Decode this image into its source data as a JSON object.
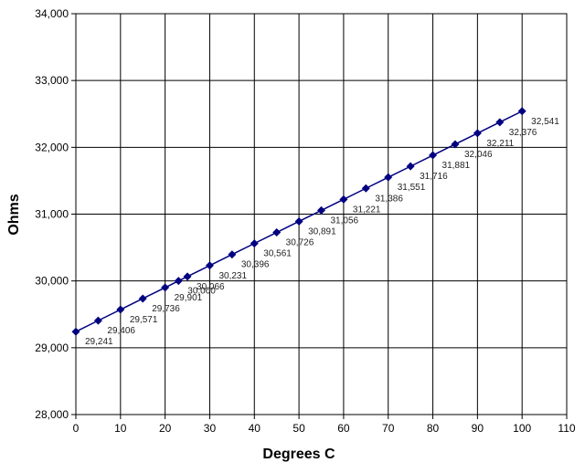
{
  "chart_data": {
    "type": "line",
    "title": "",
    "xlabel": "Degrees C",
    "ylabel": "Ohms",
    "xlim": [
      0,
      110
    ],
    "ylim": [
      28000,
      34000
    ],
    "x_ticks": [
      0,
      10,
      20,
      30,
      40,
      50,
      60,
      70,
      80,
      90,
      100,
      110
    ],
    "y_ticks": [
      28000,
      29000,
      30000,
      31000,
      32000,
      33000,
      34000
    ],
    "x_tick_labels": [
      "0",
      "10",
      "20",
      "30",
      "40",
      "50",
      "60",
      "70",
      "80",
      "90",
      "100",
      "110"
    ],
    "y_tick_labels": [
      "28,000",
      "29,000",
      "30,000",
      "31,000",
      "32,000",
      "33,000",
      "34,000"
    ],
    "grid": true,
    "legend": "none",
    "series": [
      {
        "color": "#000080",
        "marker": "diamond",
        "x": [
          0,
          5,
          10,
          15,
          20,
          23,
          25,
          30,
          35,
          40,
          45,
          50,
          55,
          60,
          65,
          70,
          75,
          80,
          85,
          90,
          95,
          100
        ],
        "y": [
          29241,
          29406,
          29571,
          29736,
          29901,
          30000,
          30066,
          30231,
          30396,
          30561,
          30726,
          30891,
          31056,
          31221,
          31386,
          31551,
          31716,
          31881,
          32046,
          32211,
          32376,
          32541
        ],
        "labels": [
          "29,241",
          "29,406",
          "29,571",
          "29,736",
          "29,901",
          "30,000",
          "30,066",
          "30,231",
          "30,396",
          "30,561",
          "30,726",
          "30,891",
          "31,056",
          "31,221",
          "31,386",
          "31,551",
          "31,716",
          "31,881",
          "32,046",
          "32,211",
          "32,376",
          "32,541"
        ]
      }
    ]
  }
}
